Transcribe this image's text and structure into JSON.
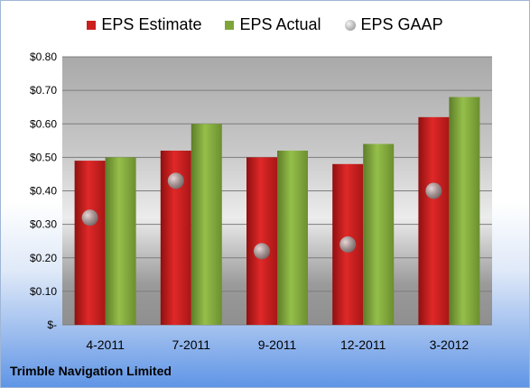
{
  "chart_data": {
    "type": "bar",
    "title": "",
    "xlabel": "",
    "ylabel": "",
    "categories": [
      "4-2011",
      "7-2011",
      "9-2011",
      "12-2011",
      "3-2012"
    ],
    "series": [
      {
        "name": "EPS Estimate",
        "type": "bar",
        "color": "#cc1f1f",
        "values": [
          0.49,
          0.52,
          0.5,
          0.48,
          0.62
        ]
      },
      {
        "name": "EPS Actual",
        "type": "bar",
        "color": "#7fa53a",
        "values": [
          0.5,
          0.6,
          0.52,
          0.54,
          0.68
        ]
      },
      {
        "name": "EPS GAAP",
        "type": "scatter",
        "color": "#8a8a8a",
        "values": [
          0.32,
          0.43,
          0.22,
          0.24,
          0.4
        ]
      }
    ],
    "ylim": [
      0,
      0.8
    ],
    "yticks": [
      0,
      0.1,
      0.2,
      0.3,
      0.4,
      0.5,
      0.6,
      0.7,
      0.8
    ],
    "ytick_labels": [
      "$-",
      "$0.10",
      "$0.20",
      "$0.30",
      "$0.40",
      "$0.50",
      "$0.60",
      "$0.70",
      "$0.80"
    ],
    "grid": true,
    "legend": "top-center"
  },
  "footer": {
    "company": "Trimble Navigation Limited"
  }
}
